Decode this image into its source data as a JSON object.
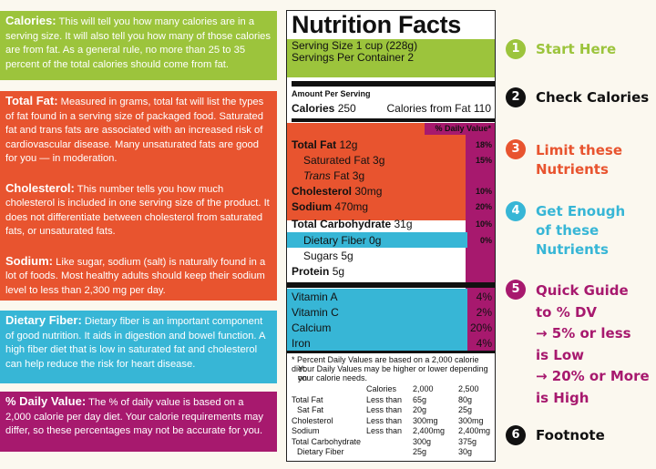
{
  "left": {
    "calories": {
      "title": "Calories:",
      "text": "This will tell you how many calories are in a serving size. It will also tell you how many of those calories are from fat. As a general rule, no more than 25 to 35 percent of the total calories should come from fat."
    },
    "total_fat": {
      "title": "Total Fat:",
      "text": "Measured in grams, total fat will list the types of fat found in a serving size of packaged food. Saturated fat and trans fats are associated with an increased risk of cardiovascular disease. Many unsaturated fats are good for you — in moderation."
    },
    "cholesterol": {
      "title": "Cholesterol:",
      "text": "This number tells you how much cholesterol is included in one serving size of the product. It does not differentiate between cholesterol from saturated fats, or unsaturated fats."
    },
    "sodium": {
      "title": "Sodium:",
      "text": "Like sugar, sodium (salt) is naturally found in a lot of foods. Most healthy adults should keep their sodium level to less than 2,300 mg per day."
    },
    "fiber": {
      "title": "Dietary Fiber:",
      "text": "Dietary fiber is an important component of good nutrition. It aids in digestion and bowel function. A high fiber diet that is low in saturated fat and cholesterol can help reduce the risk for heart disease."
    },
    "dv": {
      "title": "% Daily Value:",
      "text": "The % of daily value is based on a 2,000 calorie per day diet. Your calorie requirements may differ, so these percentages may not be accurate for you."
    }
  },
  "label": {
    "title": "Nutrition Facts",
    "serving_size": "Serving Size 1 cup (228g)",
    "servings_per": "Servings Per Container 2",
    "amount_per": "Amount Per Serving",
    "calories": "Calories",
    "calories_val": "250",
    "cal_fat": "Calories from Fat 110",
    "dv_header": "% Daily Value*",
    "total_fat": "Total Fat",
    "total_fat_val": "12g",
    "total_fat_pct": "18%",
    "sat_fat": "Saturated Fat 3g",
    "sat_fat_pct": "15%",
    "trans_fat_a": "Trans",
    "trans_fat_b": " Fat 3g",
    "cholesterol": "Cholesterol",
    "cholesterol_val": "30mg",
    "cholesterol_pct": "10%",
    "sodium": "Sodium",
    "sodium_val": "470mg",
    "sodium_pct": "20%",
    "carb": "Total Carbohydrate",
    "carb_val": "31g",
    "carb_pct": "10%",
    "fiber": "Dietary Fiber 0g",
    "fiber_pct": "0%",
    "sugars": "Sugars 5g",
    "protein": "Protein",
    "protein_val": "5g",
    "vit_a": "Vitamin A",
    "vit_a_pct": "4%",
    "vit_c": "Vitamin C",
    "vit_c_pct": "2%",
    "calcium": "Calcium",
    "calcium_pct": "20%",
    "iron": "Iron",
    "iron_pct": "4%",
    "footnote_1": "* Percent Daily Values are based on a 2,000 calorie diet.",
    "footnote_2": "Your Daily Values may be higher or lower depending on",
    "footnote_3": "your calorie needs.",
    "fn_table": [
      [
        "",
        "Calories",
        "2,000",
        "2,500"
      ],
      [
        "Total Fat",
        "Less than",
        "65g",
        "80g"
      ],
      [
        "Sat Fat",
        "Less than",
        "20g",
        "25g"
      ],
      [
        "Cholesterol",
        "Less than",
        "300mg",
        "300mg"
      ],
      [
        "Sodium",
        "Less than",
        "2,400mg",
        "2,400mg"
      ],
      [
        "Total Carbohydrate",
        "",
        "300g",
        "375g"
      ],
      [
        "Dietary Fiber",
        "",
        "25g",
        "30g"
      ]
    ]
  },
  "steps": {
    "s1": {
      "num": "1",
      "text": "Start Here"
    },
    "s2": {
      "num": "2",
      "text": "Check Calories"
    },
    "s3": {
      "num": "3",
      "l1": "Limit these",
      "l2": "Nutrients"
    },
    "s4": {
      "num": "4",
      "l1": "Get Enough",
      "l2": "of these",
      "l3": "Nutrients"
    },
    "s5": {
      "num": "5",
      "l1": "Quick Guide",
      "l2": "to % DV",
      "l3": "→ 5% or less",
      "l4": "is Low",
      "l5": "→ 20% or More",
      "l6": "is High"
    },
    "s6": {
      "num": "6",
      "text": "Footnote"
    }
  },
  "colors": {
    "green": "#9cc43c",
    "orange": "#e8542f",
    "blue": "#37b6d6",
    "purple": "#a7196e",
    "black": "#111111"
  }
}
